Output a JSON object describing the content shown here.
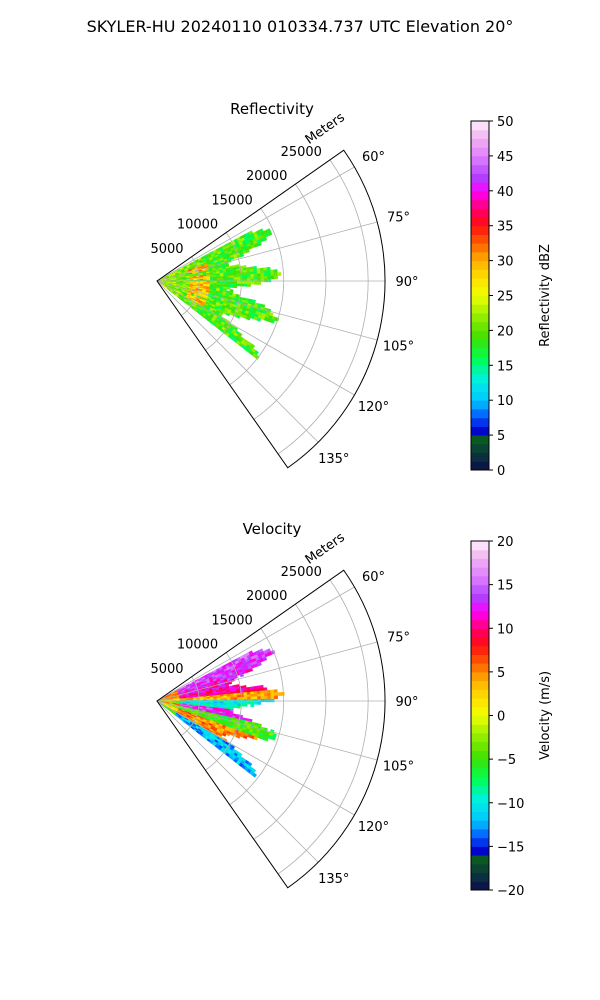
{
  "figure": {
    "suptitle": "SKYLER-HU  20240110  010334.737 UTC Elevation 20°"
  },
  "chart_data": [
    {
      "type": "heatmap",
      "subtype": "polar-sector (PPI)",
      "title": "Reflectivity",
      "radial_label": "Meters",
      "radial_ticks": [
        "5000",
        "10000",
        "15000",
        "20000",
        "25000"
      ],
      "radial_tick_values": [
        5000,
        10000,
        15000,
        20000,
        25000
      ],
      "rlim": [
        0,
        27000
      ],
      "angle_ticks": [
        "60°",
        "75°",
        "90°",
        "105°",
        "120°",
        "135°"
      ],
      "angle_tick_values": [
        60,
        75,
        90,
        105,
        120,
        135
      ],
      "theta_range_deg": [
        55,
        145
      ],
      "data_extent": {
        "azimuth_deg": [
          62,
          128
        ],
        "range_m": [
          0,
          15000
        ]
      },
      "grid": true,
      "colorbar": {
        "label": "Reflectivity dBZ",
        "ticks": [
          "0",
          "5",
          "10",
          "15",
          "20",
          "25",
          "30",
          "35",
          "40",
          "45",
          "50"
        ],
        "range": [
          0,
          50
        ]
      },
      "notes": "Mostly 15–25 dBZ; 30–40 dBZ cores near 4–6 km range"
    },
    {
      "type": "heatmap",
      "subtype": "polar-sector (PPI)",
      "title": "Velocity",
      "radial_label": "Meters",
      "radial_ticks": [
        "5000",
        "10000",
        "15000",
        "20000",
        "25000"
      ],
      "radial_tick_values": [
        5000,
        10000,
        15000,
        20000,
        25000
      ],
      "rlim": [
        0,
        27000
      ],
      "angle_ticks": [
        "60°",
        "75°",
        "90°",
        "105°",
        "120°",
        "135°"
      ],
      "angle_tick_values": [
        60,
        75,
        90,
        105,
        120,
        135
      ],
      "theta_range_deg": [
        55,
        145
      ],
      "data_extent": {
        "azimuth_deg": [
          62,
          128
        ],
        "range_m": [
          0,
          15000
        ]
      },
      "grid": true,
      "colorbar": {
        "label": "Velocity (m/s)",
        "ticks": [
          "−20",
          "−15",
          "−10",
          "−5",
          "0",
          "5",
          "10",
          "15",
          "20"
        ],
        "range": [
          -20,
          20
        ]
      },
      "notes": "Positive (+10 to +15 m/s) north of 90°, negative (−10 m/s) along ~90–95°, mixed/positive south"
    }
  ]
}
